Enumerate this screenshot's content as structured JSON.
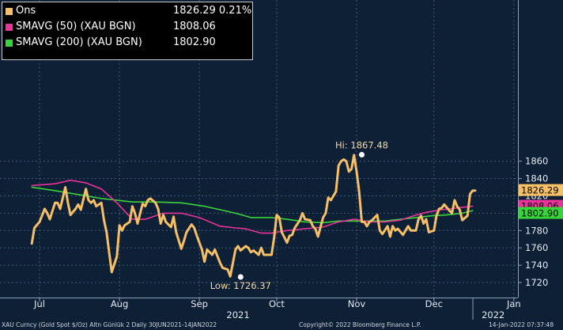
{
  "legend": [
    {
      "name": "Ons",
      "value": "1826.29",
      "change": "0.21%",
      "color": "#f7bf66"
    },
    {
      "name": "SMAVG (50) (XAU BGN)",
      "value": "1808.06",
      "color": "#e8339b"
    },
    {
      "name": "SMAVG (200) (XAU BGN)",
      "value": "1802.90",
      "color": "#37d43a"
    }
  ],
  "footer": {
    "left": "XAU Curncy (Gold Spot  $/Oz) Altn Günlük 2  Daily 30JUN2021-14JAN2022",
    "center": "Copyright© 2022 Bloomberg Finance L.P.",
    "right": "14-Jan-2022 07:37:48"
  },
  "chart_data": {
    "type": "line",
    "ylim": [
      1712,
      1885
    ],
    "yticks": [
      1720,
      1740,
      1760,
      1780,
      1800,
      1820,
      1840,
      1860
    ],
    "xticks": [
      {
        "label": "Jul",
        "day": 0
      },
      {
        "label": "Aug",
        "day": 31
      },
      {
        "label": "Sep",
        "day": 62
      },
      {
        "label": "Oct",
        "day": 92
      },
      {
        "label": "Nov",
        "day": 123
      },
      {
        "label": "Dec",
        "day": 153
      },
      {
        "label": "Jan",
        "day": 184
      }
    ],
    "year_labels": [
      {
        "label": "2021",
        "day": 77
      },
      {
        "label": "2022",
        "day": 176
      }
    ],
    "annotations": [
      {
        "text": "Hi: 1867.48",
        "day": 125,
        "value": 1867.48
      },
      {
        "text": "Low: 1726.37",
        "day": 78,
        "value": 1726.37
      }
    ],
    "last_labels": [
      {
        "text": "1826.29",
        "value": 1826.29,
        "color": "#f7bf66"
      },
      {
        "text": "1808.06",
        "value": 1808.06,
        "color": "#e8339b"
      },
      {
        "text": "1802.90",
        "value": 1802.9,
        "color": "#37d43a"
      }
    ],
    "series": [
      {
        "name": "Ons",
        "color": "#f7bf66",
        "points": [
          [
            -3,
            1765
          ],
          [
            -2,
            1783
          ],
          [
            0,
            1790
          ],
          [
            2,
            1805
          ],
          [
            3,
            1800
          ],
          [
            4,
            1793
          ],
          [
            6,
            1812
          ],
          [
            7,
            1812
          ],
          [
            8,
            1805
          ],
          [
            10,
            1830
          ],
          [
            11,
            1812
          ],
          [
            12,
            1798
          ],
          [
            14,
            1805
          ],
          [
            15,
            1810
          ],
          [
            16,
            1804
          ],
          [
            18,
            1828
          ],
          [
            19,
            1815
          ],
          [
            20,
            1812
          ],
          [
            21,
            1815
          ],
          [
            22,
            1808
          ],
          [
            24,
            1812
          ],
          [
            25,
            1792
          ],
          [
            26,
            1778
          ],
          [
            27,
            1755
          ],
          [
            28,
            1732
          ],
          [
            30,
            1750
          ],
          [
            31,
            1786
          ],
          [
            32,
            1780
          ],
          [
            33,
            1786
          ],
          [
            35,
            1790
          ],
          [
            36,
            1808
          ],
          [
            37,
            1800
          ],
          [
            38,
            1788
          ],
          [
            40,
            1811
          ],
          [
            41,
            1808
          ],
          [
            42,
            1815
          ],
          [
            43,
            1817
          ],
          [
            45,
            1812
          ],
          [
            46,
            1805
          ],
          [
            47,
            1788
          ],
          [
            48,
            1798
          ],
          [
            49,
            1790
          ],
          [
            51,
            1784
          ],
          [
            52,
            1796
          ],
          [
            53,
            1778
          ],
          [
            55,
            1759
          ],
          [
            56,
            1768
          ],
          [
            57,
            1778
          ],
          [
            59,
            1787
          ],
          [
            60,
            1783
          ],
          [
            61,
            1774
          ],
          [
            63,
            1758
          ],
          [
            64,
            1744
          ],
          [
            65,
            1758
          ],
          [
            67,
            1752
          ],
          [
            68,
            1758
          ],
          [
            70,
            1743
          ],
          [
            71,
            1737
          ],
          [
            73,
            1735
          ],
          [
            74,
            1727
          ],
          [
            76,
            1758
          ],
          [
            77,
            1762
          ],
          [
            78,
            1757
          ],
          [
            80,
            1762
          ],
          [
            81,
            1760
          ],
          [
            82,
            1755
          ],
          [
            83,
            1757
          ],
          [
            85,
            1752
          ],
          [
            86,
            1760
          ],
          [
            87,
            1752
          ],
          [
            88,
            1752
          ],
          [
            90,
            1752
          ],
          [
            91,
            1772
          ],
          [
            92,
            1798
          ],
          [
            93,
            1795
          ],
          [
            94,
            1778
          ],
          [
            96,
            1766
          ],
          [
            97,
            1774
          ],
          [
            98,
            1775
          ],
          [
            99,
            1783
          ],
          [
            101,
            1792
          ],
          [
            102,
            1800
          ],
          [
            103,
            1793
          ],
          [
            105,
            1792
          ],
          [
            106,
            1785
          ],
          [
            107,
            1782
          ],
          [
            108,
            1773
          ],
          [
            110,
            1795
          ],
          [
            111,
            1800
          ],
          [
            112,
            1818
          ],
          [
            113,
            1815
          ],
          [
            115,
            1825
          ],
          [
            116,
            1855
          ],
          [
            117,
            1860
          ],
          [
            118,
            1862
          ],
          [
            119,
            1860
          ],
          [
            120,
            1848
          ],
          [
            121,
            1851
          ],
          [
            122,
            1867
          ],
          [
            123,
            1848
          ],
          [
            124,
            1825
          ],
          [
            125,
            1790
          ],
          [
            126,
            1790
          ],
          [
            127,
            1785
          ],
          [
            128,
            1790
          ],
          [
            129,
            1792
          ],
          [
            131,
            1798
          ],
          [
            132,
            1780
          ],
          [
            133,
            1776
          ],
          [
            135,
            1785
          ],
          [
            136,
            1773
          ],
          [
            137,
            1785
          ],
          [
            138,
            1780
          ],
          [
            139,
            1782
          ],
          [
            141,
            1775
          ],
          [
            142,
            1780
          ],
          [
            143,
            1785
          ],
          [
            144,
            1780
          ],
          [
            146,
            1780
          ],
          [
            147,
            1793
          ],
          [
            148,
            1797
          ],
          [
            149,
            1788
          ],
          [
            150,
            1793
          ],
          [
            151,
            1778
          ],
          [
            153,
            1780
          ],
          [
            154,
            1797
          ],
          [
            155,
            1805
          ],
          [
            156,
            1806
          ],
          [
            157,
            1810
          ],
          [
            159,
            1803
          ],
          [
            160,
            1800
          ],
          [
            161,
            1815
          ],
          [
            162,
            1808
          ],
          [
            163,
            1804
          ],
          [
            164,
            1792
          ],
          [
            166,
            1797
          ],
          [
            167,
            1822
          ],
          [
            168,
            1826
          ],
          [
            169,
            1826
          ]
        ]
      },
      {
        "name": "SMAVG (50) (XAU BGN)",
        "color": "#e8339b",
        "points": [
          [
            -3,
            1832
          ],
          [
            6,
            1834
          ],
          [
            12,
            1838
          ],
          [
            18,
            1835
          ],
          [
            24,
            1828
          ],
          [
            30,
            1812
          ],
          [
            36,
            1793
          ],
          [
            41,
            1793
          ],
          [
            48,
            1800
          ],
          [
            55,
            1800
          ],
          [
            62,
            1795
          ],
          [
            70,
            1785
          ],
          [
            76,
            1783
          ],
          [
            80,
            1782
          ],
          [
            86,
            1777
          ],
          [
            90,
            1777
          ],
          [
            96,
            1780
          ],
          [
            103,
            1782
          ],
          [
            110,
            1784
          ],
          [
            116,
            1790
          ],
          [
            122,
            1793
          ],
          [
            128,
            1790
          ],
          [
            134,
            1790
          ],
          [
            140,
            1792
          ],
          [
            145,
            1797
          ],
          [
            150,
            1801
          ],
          [
            156,
            1804
          ],
          [
            162,
            1806
          ],
          [
            168,
            1808
          ]
        ]
      },
      {
        "name": "SMAVG (200) (XAU BGN)",
        "color": "#37d43a",
        "points": [
          [
            -3,
            1830
          ],
          [
            6,
            1826
          ],
          [
            12,
            1823
          ],
          [
            18,
            1820
          ],
          [
            24,
            1817
          ],
          [
            30,
            1815
          ],
          [
            36,
            1813
          ],
          [
            45,
            1813
          ],
          [
            55,
            1812
          ],
          [
            64,
            1808
          ],
          [
            70,
            1804
          ],
          [
            76,
            1800
          ],
          [
            82,
            1795
          ],
          [
            90,
            1795
          ],
          [
            96,
            1793
          ],
          [
            103,
            1790
          ],
          [
            110,
            1789
          ],
          [
            116,
            1791
          ],
          [
            122,
            1791
          ],
          [
            128,
            1791
          ],
          [
            134,
            1791
          ],
          [
            140,
            1793
          ],
          [
            146,
            1795
          ],
          [
            152,
            1797
          ],
          [
            158,
            1798
          ],
          [
            164,
            1800
          ],
          [
            168,
            1803
          ]
        ]
      }
    ]
  }
}
